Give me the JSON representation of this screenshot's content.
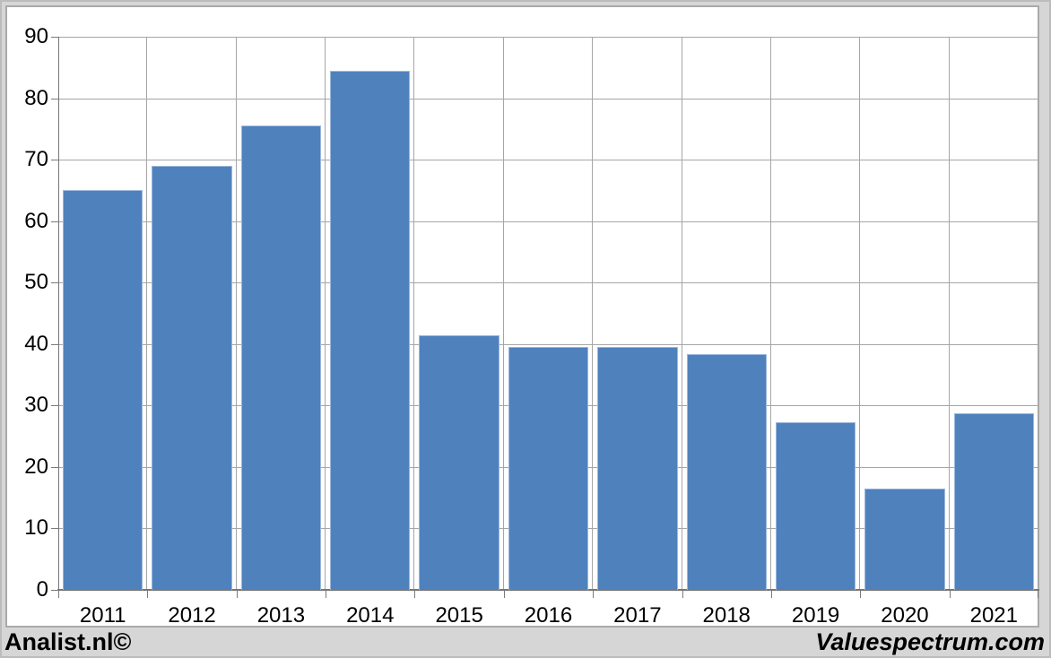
{
  "chart_data": {
    "type": "bar",
    "categories": [
      "2011",
      "2012",
      "2013",
      "2014",
      "2015",
      "2016",
      "2017",
      "2018",
      "2019",
      "2020",
      "2021"
    ],
    "values": [
      65,
      69,
      75.5,
      84.4,
      41.5,
      39.5,
      39.5,
      38.3,
      27.3,
      16.5,
      28.7
    ],
    "title": "",
    "xlabel": "",
    "ylabel": "",
    "ylim": [
      0,
      90
    ],
    "ytick_step": 10,
    "grid": true,
    "legend": false,
    "bar_color": "#4f81bd",
    "bar_border_color": "#9cb9dc",
    "gridline_color": "#a6a6a6",
    "axis_color": "#767676",
    "tick_color": "#7a7a7a",
    "bar_width_fraction": 0.9
  },
  "footer": {
    "left": "Analist.nl©",
    "right": "Valuespectrum.com"
  },
  "page": {
    "background": "#d6d6d6",
    "panel_background": "#ffffff",
    "panel_border": "#aaaaaa"
  }
}
